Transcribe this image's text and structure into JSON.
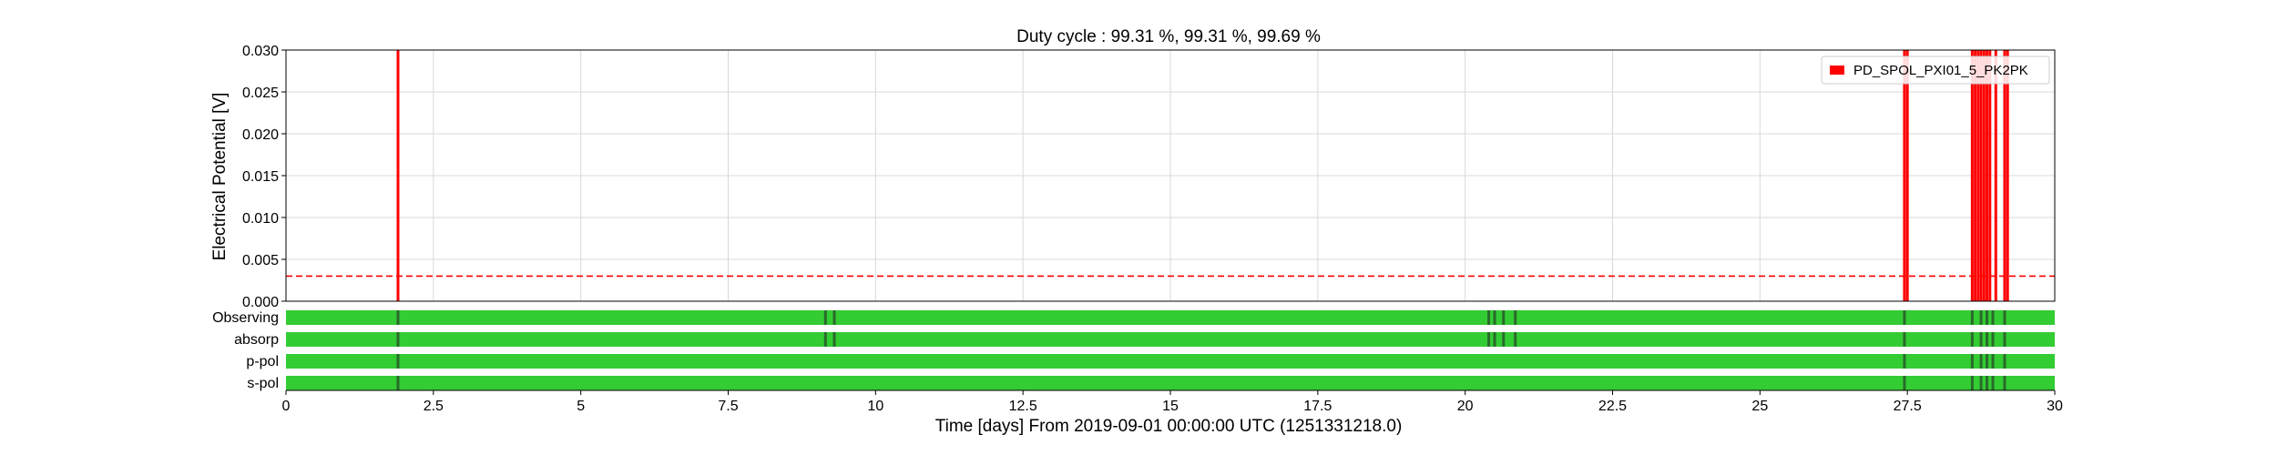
{
  "chart_data": {
    "type": "line",
    "title": "Duty cycle : 99.31 %, 99.31 %, 99.69 %",
    "xlabel": "Time [days] From 2019-09-01 00:00:00 UTC (1251331218.0)",
    "ylabel": "Electrical Potential [V]",
    "xlim": [
      0,
      30
    ],
    "ylim": [
      0,
      0.03
    ],
    "grid": true,
    "x_ticks": [
      "0",
      "2.5",
      "5",
      "7.5",
      "10",
      "12.5",
      "15",
      "17.5",
      "20",
      "22.5",
      "25",
      "27.5",
      "30"
    ],
    "x_tick_values": [
      0,
      2.5,
      5,
      7.5,
      10,
      12.5,
      15,
      17.5,
      20,
      22.5,
      25,
      27.5,
      30
    ],
    "y_ticks": [
      "0.000",
      "0.005",
      "0.010",
      "0.015",
      "0.020",
      "0.025",
      "0.030"
    ],
    "y_tick_values": [
      0,
      0.005,
      0.01,
      0.015,
      0.02,
      0.025,
      0.03
    ],
    "legend": {
      "position": "top-right",
      "entries": [
        "PD_SPOL_PXI01_5_PK2PK"
      ]
    },
    "series": [
      {
        "name": "PD_SPOL_PXI01_5_PK2PK",
        "color": "#ff0000",
        "spikes_x": [
          1.9,
          27.45,
          27.5,
          28.6,
          28.65,
          28.7,
          28.75,
          28.8,
          28.85,
          28.9,
          29.0,
          29.15,
          29.2
        ],
        "spike_value": 0.03
      }
    ],
    "threshold": {
      "value": 0.003,
      "color": "#ff0000",
      "style": "dashed"
    },
    "segments": {
      "on_color": "#33cc33",
      "off_color": "#2a6a2a",
      "rows": [
        {
          "label": "Observing",
          "gaps": [
            1.9,
            9.15,
            9.3,
            20.4,
            20.5,
            20.65,
            20.85,
            27.45,
            28.6,
            28.75,
            28.85,
            28.95,
            29.15
          ]
        },
        {
          "label": "absorp",
          "gaps": [
            1.9,
            9.15,
            9.3,
            20.4,
            20.5,
            20.65,
            20.85,
            27.45,
            28.6,
            28.75,
            28.85,
            28.95,
            29.15
          ]
        },
        {
          "label": "p-pol",
          "gaps": [
            1.9,
            27.45,
            28.6,
            28.75,
            28.85,
            28.95,
            29.15
          ]
        },
        {
          "label": "s-pol",
          "gaps": [
            1.9,
            27.45,
            28.6,
            28.75,
            28.85,
            28.95,
            29.15
          ]
        }
      ]
    }
  }
}
